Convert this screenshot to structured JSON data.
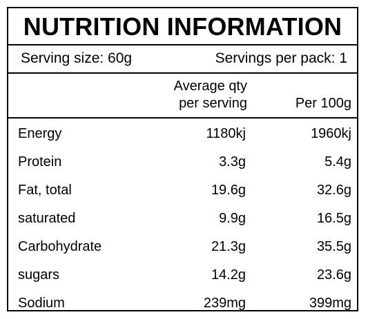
{
  "label": {
    "title": "NUTRITION INFORMATION",
    "serving_size": "Serving size: 60g",
    "servings_per_pack": "Servings per pack: 1",
    "col_avg_line1": "Average qty",
    "col_avg_line2": "per serving",
    "col_per100": "Per 100g",
    "rows": [
      {
        "name": "Energy",
        "per_serving": "1180kj",
        "per_100g": "1960kj"
      },
      {
        "name": "Protein",
        "per_serving": "3.3g",
        "per_100g": "5.4g"
      },
      {
        "name": "Fat, total",
        "per_serving": "19.6g",
        "per_100g": "32.6g"
      },
      {
        "name": "saturated",
        "per_serving": "9.9g",
        "per_100g": "16.5g"
      },
      {
        "name": "Carbohydrate",
        "per_serving": "21.3g",
        "per_100g": "35.5g"
      },
      {
        "name": "sugars",
        "per_serving": "14.2g",
        "per_100g": "23.6g"
      },
      {
        "name": "Sodium",
        "per_serving": "239mg",
        "per_100g": "399mg"
      }
    ]
  }
}
